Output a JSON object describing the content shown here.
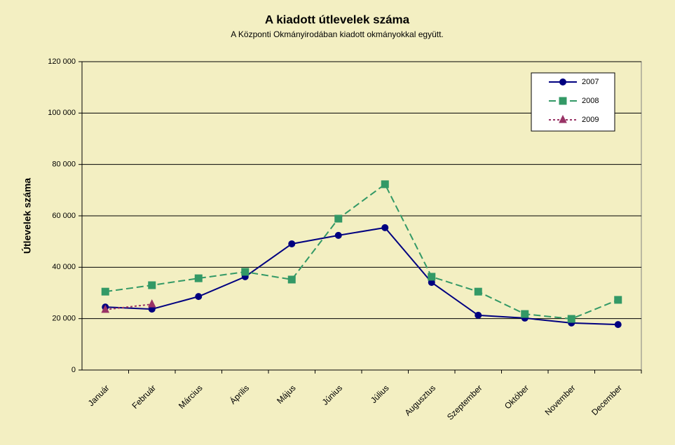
{
  "chart_data": {
    "type": "line",
    "title": "A  kiadott útlevelek száma",
    "subtitle": "A Központi Okmányirodában kiadott okmányokkal együtt.",
    "y_label": "Útlevelek száma",
    "categories": [
      "Január",
      "Február",
      "Március",
      "Április",
      "Május",
      "Június",
      "Július",
      "Augusztus",
      "Szeptember",
      "Október",
      "November",
      "December"
    ],
    "series": [
      {
        "name": "2007",
        "color": "#000080",
        "dash": "none",
        "marker": "circle",
        "values": [
          24500,
          23700,
          28600,
          36300,
          49100,
          52400,
          55400,
          34100,
          21300,
          20200,
          18300,
          17700
        ]
      },
      {
        "name": "2008",
        "color": "#339966",
        "dash": "10,5",
        "marker": "square",
        "values": [
          30500,
          33000,
          35700,
          38200,
          35200,
          58900,
          72300,
          36300,
          30500,
          21800,
          19900,
          27300
        ]
      },
      {
        "name": "2009",
        "color": "#993366",
        "dash": "3,3",
        "marker": "triangle",
        "values": [
          23500,
          25600,
          null,
          null,
          null,
          null,
          null,
          null,
          null,
          null,
          null,
          null
        ]
      }
    ],
    "ylim": [
      0,
      120000
    ],
    "yticks": [
      0,
      {
        "value": 20000,
        "label": "20 000"
      },
      {
        "value": 40000,
        "label": "40 000"
      },
      {
        "value": 60000,
        "label": "60 000"
      },
      {
        "value": 80000,
        "label": "80 000"
      },
      {
        "value": 100000,
        "label": "100 000"
      },
      {
        "value": 120000,
        "label": "120 000"
      }
    ],
    "grid": true,
    "legend": "top-right"
  }
}
